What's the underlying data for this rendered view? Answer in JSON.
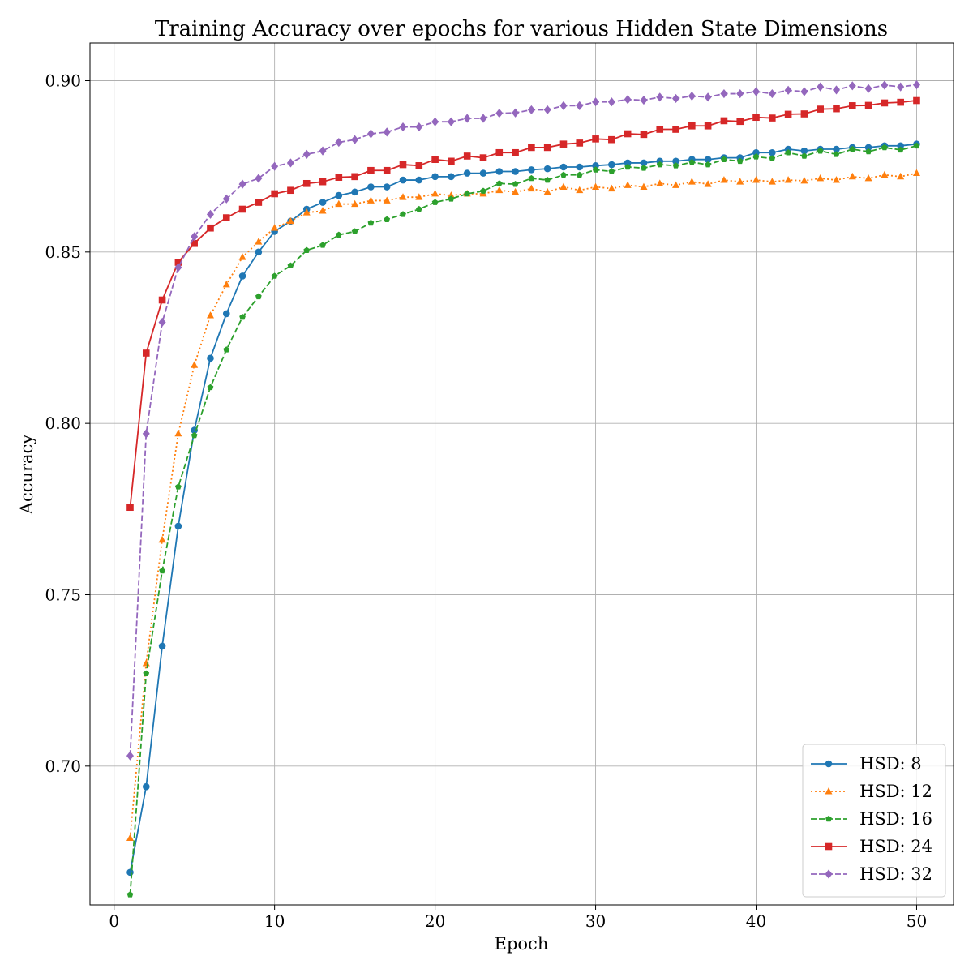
{
  "chart_data": {
    "type": "line",
    "title": "Training Accuracy over epochs for various Hidden State Dimensions",
    "xlabel": "Epoch",
    "ylabel": "Accuracy",
    "xlim": [
      -1.5,
      52.3
    ],
    "ylim": [
      0.6595,
      0.911
    ],
    "xticks": [
      0,
      10,
      20,
      30,
      40,
      50
    ],
    "yticks": [
      0.7,
      0.75,
      0.8,
      0.85,
      0.9
    ],
    "ytick_labels": [
      "0.70",
      "0.75",
      "0.80",
      "0.85",
      "0.90"
    ],
    "grid": true,
    "legend_position": "bottom-right",
    "x": [
      1,
      2,
      3,
      4,
      5,
      6,
      7,
      8,
      9,
      10,
      11,
      12,
      13,
      14,
      15,
      16,
      17,
      18,
      19,
      20,
      21,
      22,
      23,
      24,
      25,
      26,
      27,
      28,
      29,
      30,
      31,
      32,
      33,
      34,
      35,
      36,
      37,
      38,
      39,
      40,
      41,
      42,
      43,
      44,
      45,
      46,
      47,
      48,
      49,
      50
    ],
    "series": [
      {
        "name": "HSD: 8",
        "color": "#1f77b4",
        "linestyle": "solid",
        "marker": "circle",
        "values": [
          0.669,
          0.694,
          0.735,
          0.77,
          0.798,
          0.819,
          0.832,
          0.843,
          0.85,
          0.856,
          0.859,
          0.8625,
          0.8645,
          0.8665,
          0.8675,
          0.869,
          0.869,
          0.871,
          0.871,
          0.872,
          0.872,
          0.873,
          0.873,
          0.8735,
          0.8735,
          0.874,
          0.8743,
          0.8748,
          0.8748,
          0.8752,
          0.8755,
          0.876,
          0.876,
          0.8765,
          0.8765,
          0.877,
          0.877,
          0.8775,
          0.8775,
          0.879,
          0.879,
          0.88,
          0.8795,
          0.88,
          0.88,
          0.8805,
          0.8805,
          0.881,
          0.881,
          0.8815
        ]
      },
      {
        "name": "HSD: 12",
        "color": "#ff7f0e",
        "linestyle": "dotted",
        "marker": "triangle",
        "values": [
          0.679,
          0.73,
          0.766,
          0.797,
          0.817,
          0.8315,
          0.8405,
          0.8485,
          0.853,
          0.857,
          0.859,
          0.8615,
          0.862,
          0.864,
          0.864,
          0.865,
          0.865,
          0.866,
          0.866,
          0.867,
          0.8665,
          0.867,
          0.867,
          0.868,
          0.8675,
          0.8685,
          0.8675,
          0.869,
          0.868,
          0.869,
          0.8685,
          0.8695,
          0.869,
          0.87,
          0.8695,
          0.8705,
          0.8698,
          0.871,
          0.8705,
          0.871,
          0.8705,
          0.871,
          0.8708,
          0.8715,
          0.871,
          0.872,
          0.8715,
          0.8725,
          0.872,
          0.873
        ]
      },
      {
        "name": "HSD: 16",
        "color": "#2ca02c",
        "linestyle": "dashed",
        "marker": "pentagon",
        "values": [
          0.6625,
          0.727,
          0.757,
          0.7815,
          0.7965,
          0.8105,
          0.8215,
          0.831,
          0.837,
          0.843,
          0.846,
          0.8505,
          0.852,
          0.855,
          0.856,
          0.8585,
          0.8595,
          0.861,
          0.8625,
          0.8645,
          0.8655,
          0.867,
          0.8678,
          0.87,
          0.8698,
          0.8715,
          0.871,
          0.8725,
          0.8725,
          0.874,
          0.8735,
          0.8748,
          0.8745,
          0.8755,
          0.8752,
          0.8762,
          0.8755,
          0.877,
          0.8765,
          0.8778,
          0.8773,
          0.879,
          0.878,
          0.8795,
          0.8785,
          0.88,
          0.8793,
          0.8805,
          0.8798,
          0.881
        ]
      },
      {
        "name": "HSD: 24",
        "color": "#d62728",
        "linestyle": "solid",
        "marker": "square",
        "values": [
          0.7755,
          0.8205,
          0.836,
          0.847,
          0.8525,
          0.857,
          0.86,
          0.8625,
          0.8645,
          0.867,
          0.868,
          0.87,
          0.8705,
          0.8718,
          0.872,
          0.8738,
          0.8738,
          0.8755,
          0.8752,
          0.877,
          0.8765,
          0.878,
          0.8775,
          0.879,
          0.879,
          0.8805,
          0.8805,
          0.8815,
          0.8818,
          0.883,
          0.8828,
          0.8845,
          0.8843,
          0.8858,
          0.8858,
          0.8868,
          0.8868,
          0.8883,
          0.8881,
          0.8893,
          0.8891,
          0.8902,
          0.8903,
          0.8917,
          0.8918,
          0.8927,
          0.8928,
          0.8935,
          0.8937,
          0.8942
        ]
      },
      {
        "name": "HSD: 32",
        "color": "#9467bd",
        "linestyle": "dashed",
        "marker": "diamond",
        "values": [
          0.703,
          0.797,
          0.8295,
          0.8455,
          0.8545,
          0.861,
          0.8655,
          0.8698,
          0.8715,
          0.875,
          0.876,
          0.8785,
          0.8795,
          0.882,
          0.8828,
          0.8845,
          0.885,
          0.8865,
          0.8865,
          0.888,
          0.888,
          0.889,
          0.889,
          0.8905,
          0.8906,
          0.8915,
          0.8915,
          0.8927,
          0.8927,
          0.8938,
          0.8938,
          0.8945,
          0.8943,
          0.8952,
          0.8948,
          0.8955,
          0.8952,
          0.8962,
          0.8962,
          0.8968,
          0.8962,
          0.8972,
          0.8968,
          0.8982,
          0.8973,
          0.8985,
          0.8977,
          0.8987,
          0.8982,
          0.8988
        ]
      }
    ]
  }
}
